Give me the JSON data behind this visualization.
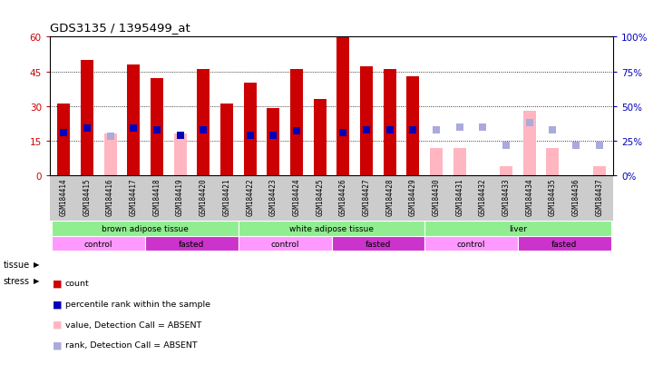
{
  "title": "GDS3135 / 1395499_at",
  "samples": [
    "GSM184414",
    "GSM184415",
    "GSM184416",
    "GSM184417",
    "GSM184418",
    "GSM184419",
    "GSM184420",
    "GSM184421",
    "GSM184422",
    "GSM184423",
    "GSM184424",
    "GSM184425",
    "GSM184426",
    "GSM184427",
    "GSM184428",
    "GSM184429",
    "GSM184430",
    "GSM184431",
    "GSM184432",
    "GSM184433",
    "GSM184434",
    "GSM184435",
    "GSM184436",
    "GSM184437"
  ],
  "red_bar": [
    31,
    50,
    null,
    48,
    42,
    null,
    46,
    31,
    40,
    29,
    46,
    33,
    60,
    47,
    46,
    43,
    null,
    null,
    null,
    null,
    null,
    null,
    null,
    null
  ],
  "blue_sq": [
    31,
    34,
    null,
    34,
    33,
    29,
    33,
    null,
    29,
    29,
    32,
    null,
    31,
    33,
    33,
    33,
    null,
    null,
    null,
    null,
    null,
    null,
    null,
    null
  ],
  "pink_bar": [
    null,
    null,
    18,
    null,
    null,
    18,
    null,
    null,
    null,
    null,
    null,
    null,
    null,
    null,
    null,
    null,
    12,
    12,
    null,
    4,
    28,
    12,
    null,
    4
  ],
  "light_blue_sq": [
    null,
    null,
    28,
    null,
    null,
    null,
    null,
    null,
    null,
    null,
    null,
    null,
    null,
    null,
    null,
    null,
    33,
    35,
    35,
    22,
    38,
    33,
    22,
    22
  ],
  "tissue_groups": [
    {
      "label": "brown adipose tissue",
      "start": 0,
      "end": 8,
      "color": "#90EE90"
    },
    {
      "label": "white adipose tissue",
      "start": 8,
      "end": 16,
      "color": "#90EE90"
    },
    {
      "label": "liver",
      "start": 16,
      "end": 24,
      "color": "#90EE90"
    }
  ],
  "stress_groups": [
    {
      "label": "control",
      "start": 0,
      "end": 4,
      "color": "#FF99FF"
    },
    {
      "label": "fasted",
      "start": 4,
      "end": 8,
      "color": "#CC33CC"
    },
    {
      "label": "control",
      "start": 8,
      "end": 12,
      "color": "#FF99FF"
    },
    {
      "label": "fasted",
      "start": 12,
      "end": 16,
      "color": "#CC33CC"
    },
    {
      "label": "control",
      "start": 16,
      "end": 20,
      "color": "#FF99FF"
    },
    {
      "label": "fasted",
      "start": 20,
      "end": 24,
      "color": "#CC33CC"
    }
  ],
  "ylim_left": [
    0,
    60
  ],
  "ylim_right": [
    0,
    100
  ],
  "yticks_left": [
    0,
    15,
    30,
    45,
    60
  ],
  "yticks_right": [
    0,
    25,
    50,
    75,
    100
  ],
  "bar_width": 0.55,
  "red_color": "#CC0000",
  "blue_color": "#0000BB",
  "pink_color": "#FFB6C1",
  "light_blue_color": "#AAAADD",
  "xticklabel_bg": "#CCCCCC"
}
